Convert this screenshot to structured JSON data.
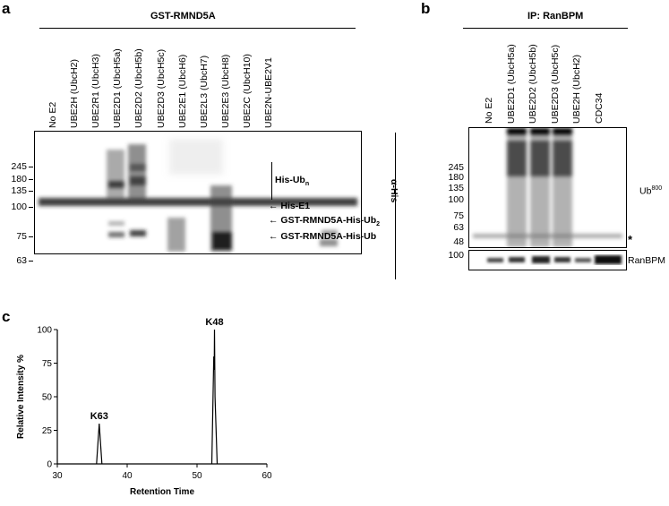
{
  "panel_a": {
    "letter": "a",
    "header": "GST-RMND5A",
    "lanes": [
      "No E2",
      "UBE2H (UbcH2)",
      "UBE2R1 (UbcH3)",
      "UBE2D1 (UbcH5a)",
      "UBE2D2 (UbcH5b)",
      "UBE2D3 (UbcH5c)",
      "UBE2E1 (UbcH6)",
      "UBE2L3 (UbcH7)",
      "UBE2E3 (UbcH8)",
      "UBE2C (UbcH10)",
      "UBE2N-UBE2V1"
    ],
    "markers": [
      "245",
      "180",
      "135",
      "100",
      "75",
      "63"
    ],
    "annotations": {
      "his_ubn_main": "His-Ub",
      "his_ubn_sub": "n",
      "his_e1": "His-E1",
      "gst_ub2_main": "GST-RMND5A-His-Ub",
      "gst_ub2_sub": "2",
      "gst_ub": "GST-RMND5A-His-Ub",
      "antibody": "α-His"
    }
  },
  "panel_b": {
    "letter": "b",
    "header": "IP: RanBPM",
    "lanes": [
      "No E2",
      "UBE2D1 (UbcH5a)",
      "UBE2D2 (UbcH5b)",
      "UBE2D3 (UbcH5c)",
      "UBE2H (UbcH2)",
      "CDC34"
    ],
    "markers": [
      "245",
      "180",
      "135",
      "100",
      "75",
      "63",
      "48"
    ],
    "lower_marker": "100",
    "annotations": {
      "ub_main": "Ub",
      "ub_sup": "800",
      "star": "*",
      "ranbpm": "RanBPM"
    }
  },
  "panel_c": {
    "letter": "c",
    "chart_data": {
      "type": "line",
      "xlabel": "Retention Time",
      "ylabel": "Relative Intensity %",
      "xlim": [
        30,
        60
      ],
      "ylim": [
        0,
        100
      ],
      "xticks": [
        "30",
        "40",
        "50",
        "60"
      ],
      "yticks": [
        "0",
        "25",
        "50",
        "75",
        "100"
      ],
      "peaks": [
        {
          "label": "K63",
          "x": 36,
          "y": 30
        },
        {
          "label": "K48",
          "x": 52.5,
          "y": 100
        }
      ]
    }
  }
}
